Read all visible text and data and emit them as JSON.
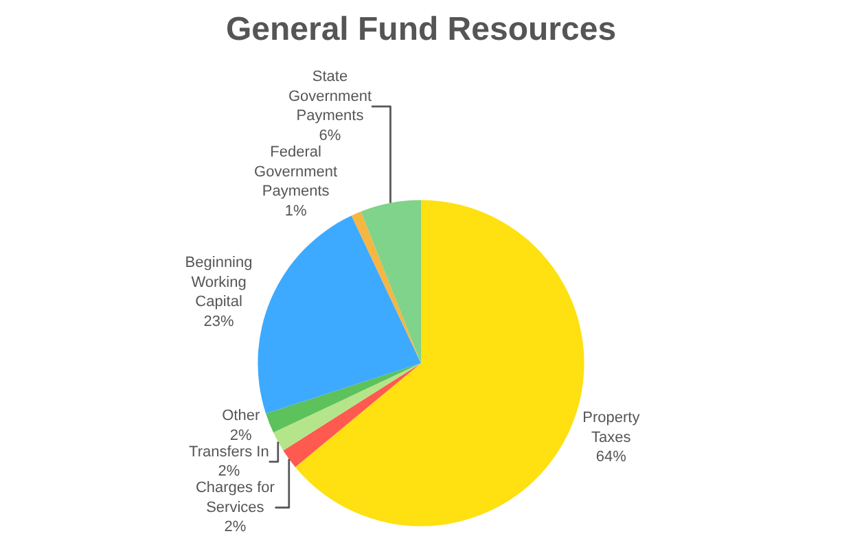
{
  "chart_data": {
    "type": "pie",
    "title": "General Fund Resources",
    "categories": [
      "Property Taxes",
      "Charges for Services",
      "Transfers In",
      "Other",
      "Beginning Working Capital",
      "Federal Government Payments",
      "State Government Payments"
    ],
    "values": [
      64,
      2,
      2,
      2,
      23,
      1,
      6
    ],
    "colors": [
      "#ffe010",
      "#ff5a4f",
      "#b5e58a",
      "#5dc15c",
      "#3daaff",
      "#f5b642",
      "#7fd38a"
    ],
    "value_labels": [
      "64%",
      "2%",
      "2%",
      "2%",
      "23%",
      "1%",
      "6%"
    ],
    "legend": false
  }
}
